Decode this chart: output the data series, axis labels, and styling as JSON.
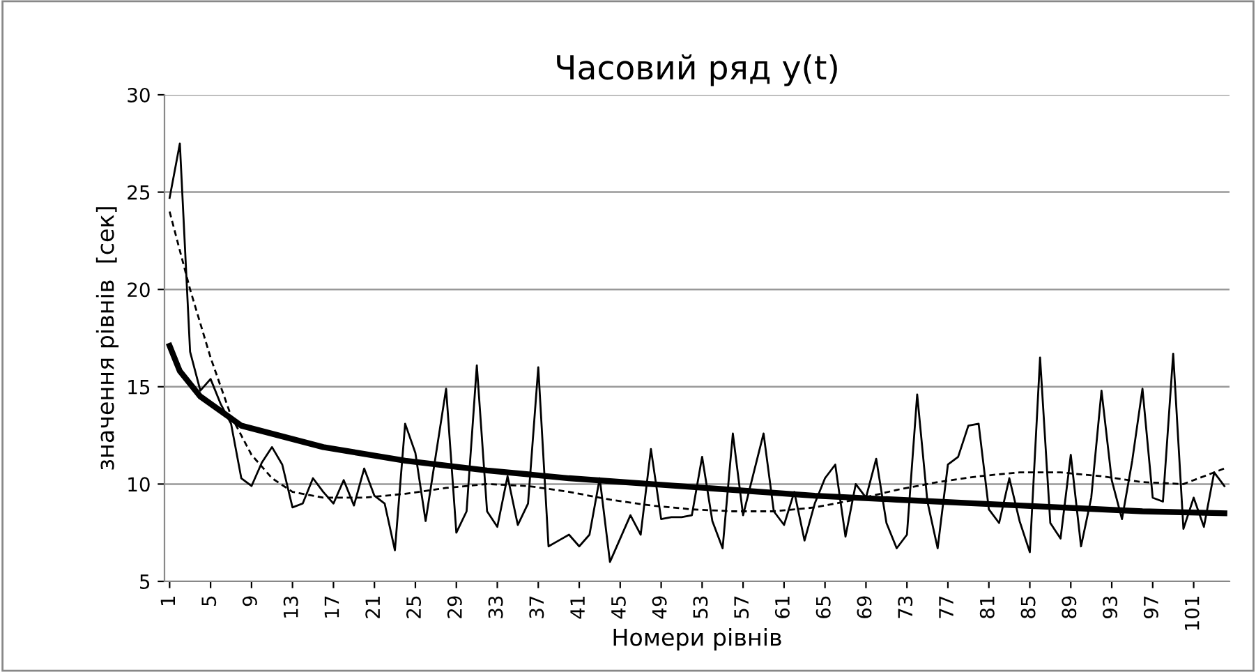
{
  "chart_data": {
    "type": "line",
    "title": "Часовий ряд y(t)",
    "xlabel": "Номери рівнів",
    "ylabel": "значення рівнів  [сек]",
    "xlim": [
      0.5,
      104.5
    ],
    "xticks": [
      1,
      5,
      9,
      13,
      17,
      21,
      25,
      29,
      33,
      37,
      41,
      45,
      49,
      53,
      57,
      61,
      65,
      69,
      73,
      77,
      81,
      85,
      89,
      93,
      97,
      101
    ],
    "ylim": [
      5,
      30
    ],
    "yticks": [
      5,
      10,
      15,
      20,
      25,
      30
    ],
    "grid": "y",
    "legend": false,
    "marker": "none",
    "series": [
      {
        "color": "#000000",
        "line_style": "solid",
        "x": [
          1,
          2,
          3,
          4,
          5,
          6,
          7,
          8,
          9,
          10,
          11,
          12,
          13,
          14,
          15,
          16,
          17,
          18,
          19,
          20,
          21,
          22,
          23,
          24,
          25,
          26,
          27,
          28,
          29,
          30,
          31,
          32,
          33,
          34,
          35,
          36,
          37,
          38,
          39,
          40,
          41,
          42,
          43,
          44,
          45,
          46,
          47,
          48,
          49,
          50,
          51,
          52,
          53,
          54,
          55,
          56,
          57,
          58,
          59,
          60,
          61,
          62,
          63,
          64,
          65,
          66,
          67,
          68,
          69,
          70,
          71,
          72,
          73,
          74,
          75,
          76,
          77,
          78,
          79,
          80,
          81,
          82,
          83,
          84,
          85,
          86,
          87,
          88,
          89,
          90,
          91,
          92,
          93,
          94,
          95,
          96,
          97,
          98,
          99,
          100,
          101,
          102,
          103,
          104
        ],
        "values": [
          24.7,
          27.5,
          16.8,
          14.8,
          15.4,
          14.1,
          13.1,
          10.3,
          9.9,
          11.1,
          11.9,
          11.0,
          8.8,
          9.0,
          10.3,
          9.6,
          9.0,
          10.2,
          8.9,
          10.8,
          9.4,
          9.0,
          6.6,
          13.1,
          11.6,
          8.1,
          11.5,
          14.9,
          7.5,
          8.6,
          16.1,
          8.6,
          7.8,
          10.4,
          7.9,
          9.0,
          16.0,
          6.8,
          7.1,
          7.4,
          6.8,
          7.4,
          10.3,
          6.0,
          7.2,
          8.4,
          7.4,
          11.8,
          8.2,
          8.3,
          8.3,
          8.4,
          11.4,
          8.1,
          6.7,
          12.6,
          8.4,
          10.5,
          12.6,
          8.6,
          7.9,
          9.6,
          7.1,
          9.0,
          10.3,
          11.0,
          7.3,
          10.0,
          9.3,
          11.3,
          8.0,
          6.7,
          7.4,
          14.6,
          9.1,
          6.7,
          11.0,
          11.4,
          13.0,
          13.1,
          8.7,
          8.0,
          10.3,
          8.1,
          6.5,
          16.5,
          8.0,
          7.2,
          11.5,
          6.8,
          9.3,
          14.8,
          10.2,
          8.2,
          11.2,
          14.9,
          9.3,
          9.1,
          16.7,
          7.7,
          9.3,
          7.8,
          10.6,
          9.9
        ]
      },
      {
        "color": "#000000",
        "line_style": "dashed",
        "x": [
          1,
          3,
          5,
          7,
          9,
          11,
          13,
          16,
          20,
          24,
          28,
          32,
          36,
          40,
          44,
          48,
          52,
          56,
          60,
          64,
          68,
          72,
          76,
          80,
          84,
          88,
          92,
          96,
          100,
          104
        ],
        "values": [
          24.0,
          20.0,
          16.5,
          13.5,
          11.5,
          10.3,
          9.6,
          9.3,
          9.3,
          9.5,
          9.8,
          10.0,
          9.9,
          9.6,
          9.2,
          8.9,
          8.7,
          8.6,
          8.6,
          8.8,
          9.2,
          9.7,
          10.1,
          10.4,
          10.6,
          10.6,
          10.4,
          10.1,
          10.0,
          10.8
        ]
      },
      {
        "color": "#000000",
        "line_style": "solid",
        "x": [
          1,
          2,
          4,
          8,
          16,
          24,
          32,
          40,
          48,
          56,
          64,
          72,
          80,
          88,
          96,
          104
        ],
        "values": [
          17.1,
          15.8,
          14.5,
          13.0,
          11.9,
          11.2,
          10.7,
          10.3,
          10.0,
          9.7,
          9.4,
          9.2,
          9.0,
          8.8,
          8.6,
          8.5
        ]
      }
    ]
  }
}
